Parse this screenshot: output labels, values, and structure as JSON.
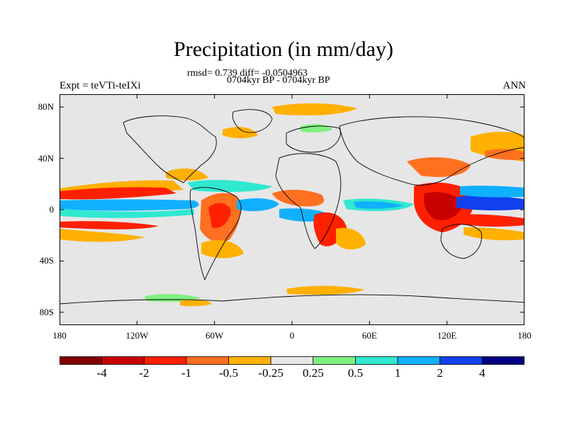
{
  "title": "Precipitation (in mm/day)",
  "stats_line": "rmsd= 0.739 diff= -0.0504963",
  "period_line": "0704kyr BP - 0704kyr BP",
  "experiment": "Expt = teVTi-teIXi",
  "season": "ANN",
  "map": {
    "projection": "cylindrical-equidistant",
    "lon_range": [
      -180,
      180
    ],
    "lat_range": [
      -90,
      90
    ],
    "y_ticks": [
      {
        "lat": 80,
        "label": "80N"
      },
      {
        "lat": 40,
        "label": "40N"
      },
      {
        "lat": 0,
        "label": "0"
      },
      {
        "lat": -40,
        "label": "40S"
      },
      {
        "lat": -80,
        "label": "80S"
      }
    ],
    "x_ticks": [
      {
        "lon": -180,
        "label": "180"
      },
      {
        "lon": -120,
        "label": "120W"
      },
      {
        "lon": -60,
        "label": "60W"
      },
      {
        "lon": 0,
        "label": "0"
      },
      {
        "lon": 60,
        "label": "60E"
      },
      {
        "lon": 120,
        "label": "120E"
      },
      {
        "lon": 180,
        "label": "180"
      }
    ],
    "background_color": "#e6e6e6",
    "coastline_color": "#000000"
  },
  "colorbar": {
    "colors": [
      "#800000",
      "#c80000",
      "#ff2000",
      "#ff7020",
      "#ffb000",
      "#e6e6e6",
      "#80f080",
      "#30e8d0",
      "#10b0ff",
      "#1040f0",
      "#000080"
    ],
    "tick_labels": [
      "-4",
      "-2",
      "-1",
      "-0.5",
      "-0.25",
      "0.25",
      "0.5",
      "1",
      "2",
      "4"
    ]
  }
}
